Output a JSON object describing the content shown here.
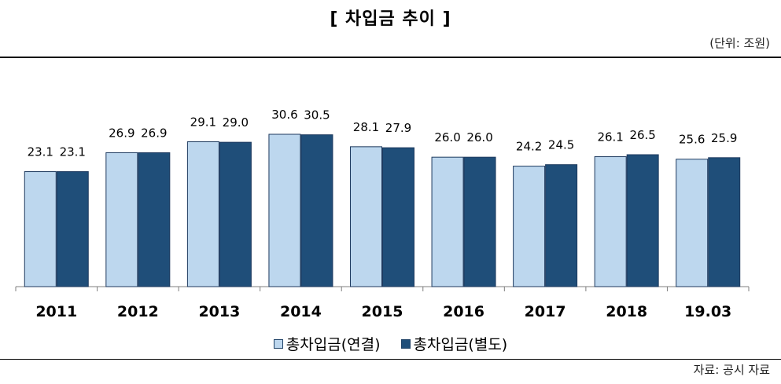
{
  "header": {
    "title": "[ 차입금 추이 ]",
    "unit": "(단위: 조원)"
  },
  "footer": {
    "source": "자료: 공시 자료"
  },
  "colors": {
    "series1": "#bdd7ee",
    "series2": "#1f4e79",
    "outline": "#1e3a5f"
  },
  "chart_data": {
    "type": "bar",
    "title": "[ 차입금 추이 ]",
    "unit": "(단위: 조원)",
    "categories": [
      "2011",
      "2012",
      "2013",
      "2014",
      "2015",
      "2016",
      "2017",
      "2018",
      "19.03"
    ],
    "series": [
      {
        "name": "총차입금(연결)",
        "values": [
          23.1,
          26.9,
          29.1,
          30.6,
          28.1,
          26.0,
          24.2,
          26.1,
          25.6
        ]
      },
      {
        "name": "총차입금(별도)",
        "values": [
          23.1,
          26.9,
          29.0,
          30.5,
          27.9,
          26.0,
          24.5,
          26.5,
          25.9
        ]
      }
    ],
    "ylim": [
      0,
      30.6
    ],
    "legend": "bottom",
    "grid": false
  }
}
